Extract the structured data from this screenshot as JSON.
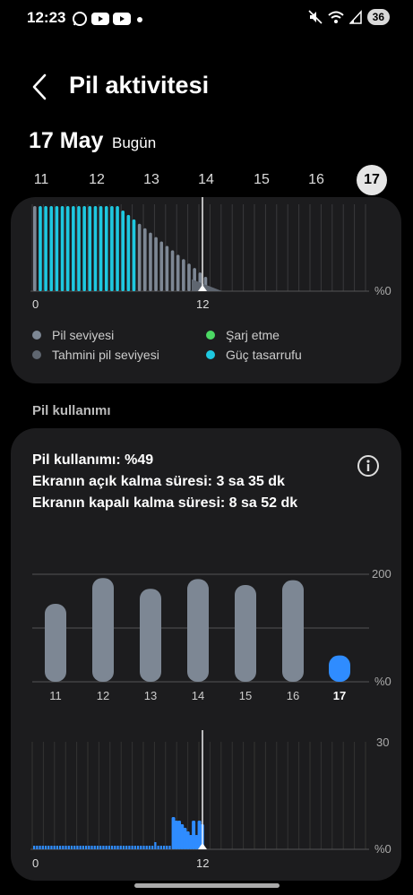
{
  "status_bar": {
    "time": "12:23",
    "battery": "36",
    "left_icons": [
      "whatsapp-icon",
      "youtube-icon",
      "youtube-icon",
      "dot-icon"
    ],
    "right_icons": [
      "mute-icon",
      "wifi-icon",
      "signal-icon"
    ]
  },
  "header": {
    "title": "Pil aktivitesi"
  },
  "date": {
    "main": "17 May",
    "sub": "Bugün"
  },
  "days": [
    "11",
    "12",
    "13",
    "14",
    "15",
    "16",
    "17"
  ],
  "selected_day": "17",
  "battery_chart": {
    "y_label": "%0",
    "x_labels": [
      "0",
      "12"
    ],
    "legend": [
      {
        "label": "Pil seviyesi",
        "color": "#7d8794"
      },
      {
        "label": "Tahmini pil seviyesi",
        "color": "#5f6670"
      },
      {
        "label": "Şarj etme",
        "color": "#4cd964"
      },
      {
        "label": "Güç tasarrufu",
        "color": "#1ec8e0"
      }
    ]
  },
  "usage": {
    "section_title": "Pil kullanımı",
    "line1": "Pil kullanımı: %49",
    "line2": "Ekranın açık kalma süresi: 3 sa 35 dk",
    "line3": "Ekranın kapalı kalma süresi: 8 sa 52 dk"
  },
  "chart_data": [
    {
      "type": "bar",
      "categories": [
        "11",
        "12",
        "13",
        "14",
        "15",
        "16",
        "17"
      ],
      "values": [
        145,
        193,
        173,
        191,
        180,
        189,
        49
      ],
      "y_tick_labels": [
        "200",
        "%0"
      ],
      "ylim": [
        0,
        200
      ],
      "colors": {
        "default": "#7d8794",
        "selected": "#2f8cff"
      }
    },
    {
      "type": "bar",
      "x_labels": [
        "0",
        "12"
      ],
      "y_tick_labels": [
        "30",
        "%0"
      ],
      "ylim": [
        0,
        30
      ],
      "values": [
        1,
        1,
        1,
        1,
        1,
        1,
        1,
        1,
        1,
        1,
        1,
        1,
        1,
        1,
        1,
        1,
        1,
        1,
        1,
        1,
        1,
        1,
        1,
        1,
        1,
        1,
        1,
        1,
        1,
        1,
        1,
        1,
        1,
        1,
        1,
        1,
        1,
        1,
        1,
        1,
        1,
        1,
        2,
        1,
        1,
        1,
        1,
        1,
        9,
        8,
        8,
        7,
        6,
        5,
        4,
        8,
        4,
        8,
        7
      ],
      "color": "#2f8cff"
    }
  ]
}
